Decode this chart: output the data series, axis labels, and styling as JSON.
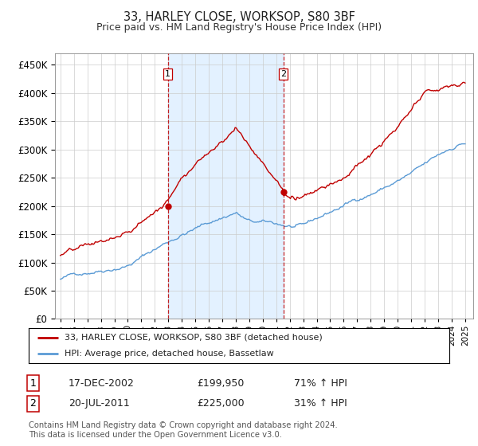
{
  "title": "33, HARLEY CLOSE, WORKSOP, S80 3BF",
  "subtitle": "Price paid vs. HM Land Registry's House Price Index (HPI)",
  "legend_line1": "33, HARLEY CLOSE, WORKSOP, S80 3BF (detached house)",
  "legend_line2": "HPI: Average price, detached house, Bassetlaw",
  "transaction1_date": "17-DEC-2002",
  "transaction1_price": "£199,950",
  "transaction1_hpi": "71% ↑ HPI",
  "transaction2_date": "20-JUL-2011",
  "transaction2_price": "£225,000",
  "transaction2_hpi": "31% ↑ HPI",
  "footer": "Contains HM Land Registry data © Crown copyright and database right 2024.\nThis data is licensed under the Open Government Licence v3.0.",
  "hpi_color": "#5b9bd5",
  "price_color": "#c00000",
  "vline_color": "#c00000",
  "shade_color": "#ddeeff",
  "fig_bg_color": "#ffffff",
  "plot_bg_color": "#ffffff",
  "grid_color": "#cccccc",
  "ylim": [
    0,
    470000
  ],
  "yticks": [
    0,
    50000,
    100000,
    150000,
    200000,
    250000,
    300000,
    350000,
    400000,
    450000
  ],
  "sale1_t": 2002.96,
  "sale1_price": 199950,
  "sale2_t": 2011.54,
  "sale2_price": 225000
}
